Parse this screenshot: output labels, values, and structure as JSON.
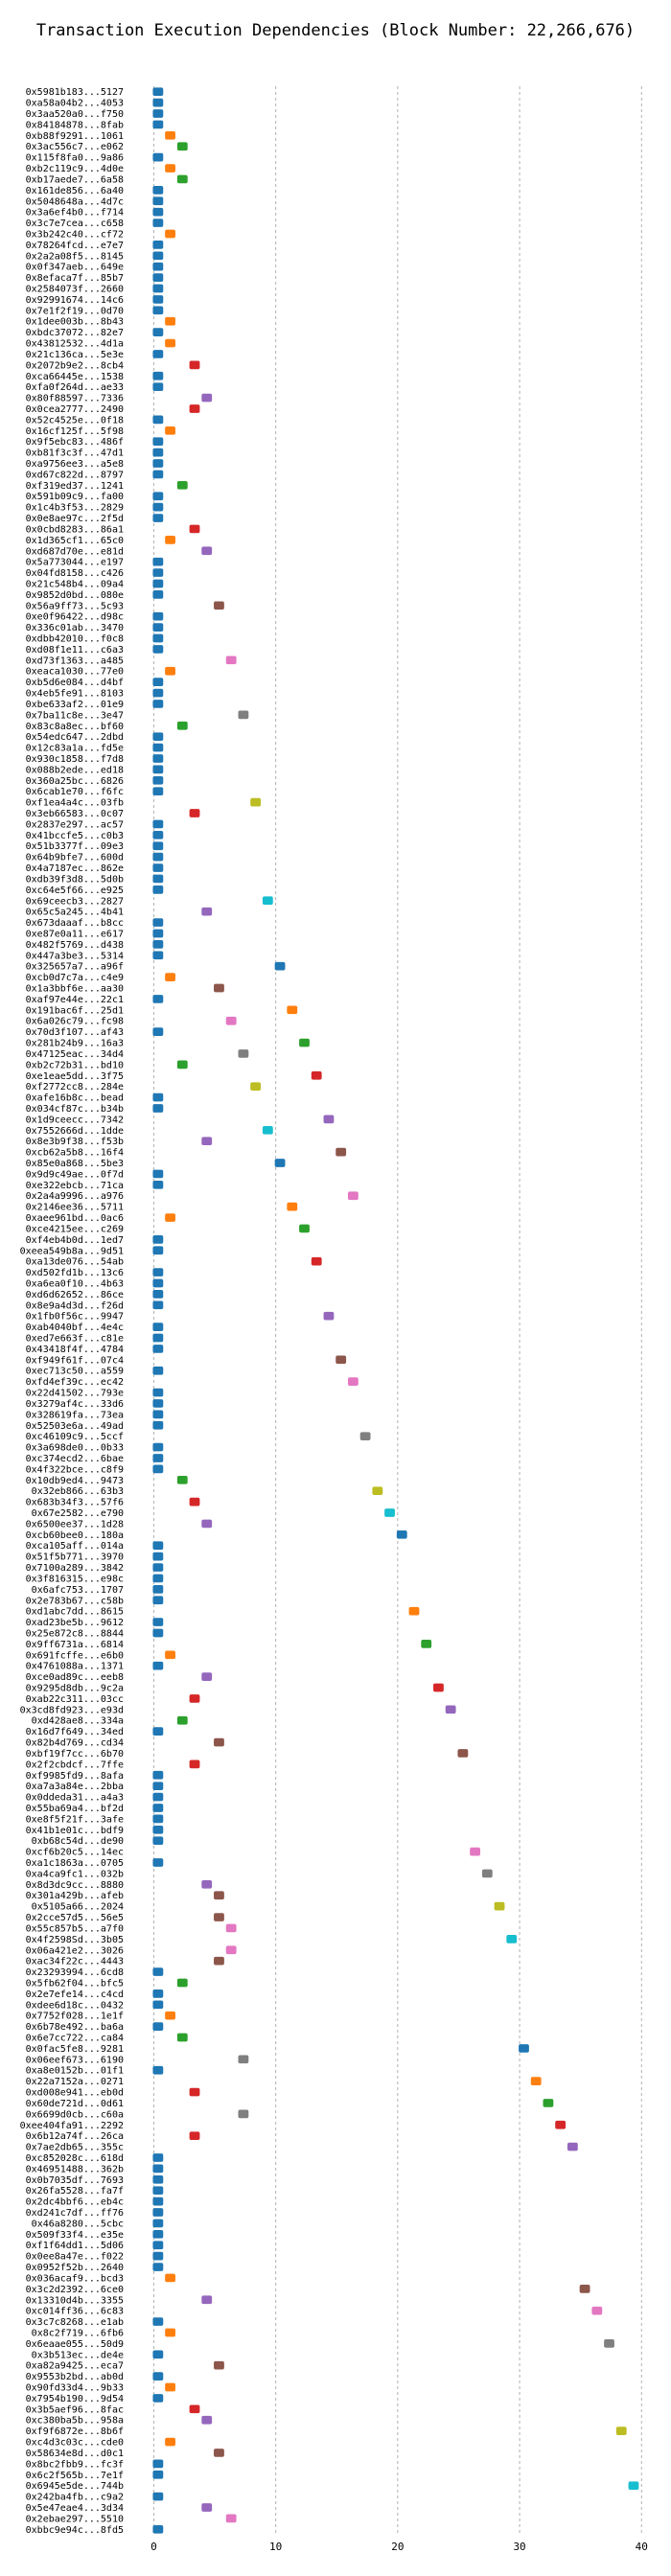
{
  "chart_data": {
    "type": "gantt",
    "title": "Transaction Execution Dependencies (Block Number: 22,266,676)",
    "xlabel": "",
    "ylabel": "",
    "xlim": [
      -2,
      41
    ],
    "xticks": [
      0,
      10,
      20,
      30,
      40
    ],
    "grid": true,
    "bar_duration": 1,
    "tasks": [
      {
        "label": "0x5981b183...5127",
        "start": 0
      },
      {
        "label": "0xa58a04b2...4053",
        "start": 0
      },
      {
        "label": "0x3aa520a0...f750",
        "start": 0
      },
      {
        "label": "0x84184878...8fab",
        "start": 0
      },
      {
        "label": "0xb88f9291...1061",
        "start": 1
      },
      {
        "label": "0x3ac556c7...e062",
        "start": 2
      },
      {
        "label": "0x115f8fa0...9a86",
        "start": 0
      },
      {
        "label": "0xb2c119c9...4d0e",
        "start": 1
      },
      {
        "label": "0xb17aede7...6a58",
        "start": 2
      },
      {
        "label": "0x161de856...6a40",
        "start": 0
      },
      {
        "label": "0x5048648a...4d7c",
        "start": 0
      },
      {
        "label": "0x3a6ef4b0...f714",
        "start": 0
      },
      {
        "label": "0x3c7e7cea...c658",
        "start": 0
      },
      {
        "label": "0x3b242c40...cf72",
        "start": 1
      },
      {
        "label": "0x78264fcd...e7e7",
        "start": 0
      },
      {
        "label": "0x2a2a08f5...8145",
        "start": 0
      },
      {
        "label": "0x0f347aeb...649e",
        "start": 0
      },
      {
        "label": "0x8efaca7f...85b7",
        "start": 0
      },
      {
        "label": "0x2584073f...2660",
        "start": 0
      },
      {
        "label": "0x92991674...14c6",
        "start": 0
      },
      {
        "label": "0x7e1f2f19...0d70",
        "start": 0
      },
      {
        "label": "0x1dee003b...8b43",
        "start": 1
      },
      {
        "label": "0xbdc37072...82e7",
        "start": 0
      },
      {
        "label": "0x43812532...4d1a",
        "start": 1
      },
      {
        "label": "0x21c136ca...5e3e",
        "start": 0
      },
      {
        "label": "0x2072b9e2...8cb4",
        "start": 3
      },
      {
        "label": "0xca66445e...1538",
        "start": 0
      },
      {
        "label": "0xfa0f264d...ae33",
        "start": 0
      },
      {
        "label": "0x80f88597...7336",
        "start": 4
      },
      {
        "label": "0x0cea2777...2490",
        "start": 3
      },
      {
        "label": "0x52c4525e...0f18",
        "start": 0
      },
      {
        "label": "0x16cf125f...5f98",
        "start": 1
      },
      {
        "label": "0x9f5ebc83...486f",
        "start": 0
      },
      {
        "label": "0xb81f3c3f...47d1",
        "start": 0
      },
      {
        "label": "0xa9756ee3...a5e8",
        "start": 0
      },
      {
        "label": "0xd67c822d...8797",
        "start": 0
      },
      {
        "label": "0xf319ed37...1241",
        "start": 2
      },
      {
        "label": "0x591b09c9...fa00",
        "start": 0
      },
      {
        "label": "0x1c4b3f53...2829",
        "start": 0
      },
      {
        "label": "0x0e8ae97c...2f5d",
        "start": 0
      },
      {
        "label": "0x0cbd8283...86a1",
        "start": 3
      },
      {
        "label": "0x1d365cf1...65c0",
        "start": 1
      },
      {
        "label": "0xd687d70e...e81d",
        "start": 4
      },
      {
        "label": "0x5a773044...e197",
        "start": 0
      },
      {
        "label": "0x04fd8158...c426",
        "start": 0
      },
      {
        "label": "0x21c548b4...09a4",
        "start": 0
      },
      {
        "label": "0x9852d0bd...080e",
        "start": 0
      },
      {
        "label": "0x56a9ff73...5c93",
        "start": 5
      },
      {
        "label": "0xe0f96422...d98c",
        "start": 0
      },
      {
        "label": "0x336c01ab...3470",
        "start": 0
      },
      {
        "label": "0xdbb42010...f0c8",
        "start": 0
      },
      {
        "label": "0xd08f1e11...c6a3",
        "start": 0
      },
      {
        "label": "0xd73f1363...a485",
        "start": 6
      },
      {
        "label": "0xeaca1030...77e0",
        "start": 1
      },
      {
        "label": "0xb5d6e084...d4bf",
        "start": 0
      },
      {
        "label": "0x4eb5fe91...8103",
        "start": 0
      },
      {
        "label": "0xbe633af2...01e9",
        "start": 0
      },
      {
        "label": "0x7ba11c8e...3e47",
        "start": 7
      },
      {
        "label": "0x83c8a8ec...bf60",
        "start": 2
      },
      {
        "label": "0x54edc647...2dbd",
        "start": 0
      },
      {
        "label": "0x12c83a1a...fd5e",
        "start": 0
      },
      {
        "label": "0x930c1858...f7d8",
        "start": 0
      },
      {
        "label": "0x088b2ede...ed18",
        "start": 0
      },
      {
        "label": "0x360a25bc...6826",
        "start": 0
      },
      {
        "label": "0x6cab1e70...f6fc",
        "start": 0
      },
      {
        "label": "0xf1ea4a4c...03fb",
        "start": 8
      },
      {
        "label": "0x3eb66583...0c07",
        "start": 3
      },
      {
        "label": "0x2837e297...ac57",
        "start": 0
      },
      {
        "label": "0x41bccfe5...c0b3",
        "start": 0
      },
      {
        "label": "0x51b3377f...09e3",
        "start": 0
      },
      {
        "label": "0x64b9bfe7...600d",
        "start": 0
      },
      {
        "label": "0x4a7187ec...862e",
        "start": 0
      },
      {
        "label": "0xdb39f3d8...5d0b",
        "start": 0
      },
      {
        "label": "0xc64e5f66...e925",
        "start": 0
      },
      {
        "label": "0x69ceecb3...2827",
        "start": 9
      },
      {
        "label": "0x65c5a245...4b41",
        "start": 4
      },
      {
        "label": "0x673daaaf...b8cc",
        "start": 0
      },
      {
        "label": "0xe87e0a11...e617",
        "start": 0
      },
      {
        "label": "0x482f5769...d438",
        "start": 0
      },
      {
        "label": "0x447a3be3...5314",
        "start": 0
      },
      {
        "label": "0x325657a7...a96f",
        "start": 10
      },
      {
        "label": "0xcb0d7c7a...c4e9",
        "start": 1
      },
      {
        "label": "0x1a3bbf6e...aa30",
        "start": 5
      },
      {
        "label": "0xaf97e44e...22c1",
        "start": 0
      },
      {
        "label": "0x191bac6f...25d1",
        "start": 11
      },
      {
        "label": "0x6a026c79...fc98",
        "start": 6
      },
      {
        "label": "0x70d3f107...af43",
        "start": 0
      },
      {
        "label": "0x281b24b9...16a3",
        "start": 12
      },
      {
        "label": "0x47125eac...34d4",
        "start": 7
      },
      {
        "label": "0xb2c72b31...bd10",
        "start": 2
      },
      {
        "label": "0xe1eae5dd...3f75",
        "start": 13
      },
      {
        "label": "0xf2772cc8...284e",
        "start": 8
      },
      {
        "label": "0xafe16b8c...bead",
        "start": 0
      },
      {
        "label": "0x034cf87c...b34b",
        "start": 0
      },
      {
        "label": "0x1d9ceecc...7342",
        "start": 14
      },
      {
        "label": "0x7552666d...1dde",
        "start": 9
      },
      {
        "label": "0x8e3b9f38...f53b",
        "start": 4
      },
      {
        "label": "0xcb62a5b8...16f4",
        "start": 15
      },
      {
        "label": "0x85e0a868...5be3",
        "start": 10
      },
      {
        "label": "0x9d9c49ae...0f7d",
        "start": 0
      },
      {
        "label": "0xe322ebcb...71ca",
        "start": 0
      },
      {
        "label": "0x2a4a9996...a976",
        "start": 16
      },
      {
        "label": "0x2146ee36...5711",
        "start": 11
      },
      {
        "label": "0xaee961bd...0ac6",
        "start": 1
      },
      {
        "label": "0xce4215ee...c269",
        "start": 12
      },
      {
        "label": "0xf4eb4b0d...1ed7",
        "start": 0
      },
      {
        "label": "0xeea549b8a...9d51",
        "start": 0
      },
      {
        "label": "0xa13de076...54ab",
        "start": 13
      },
      {
        "label": "0xd502fd1b...13c6",
        "start": 0
      },
      {
        "label": "0xa6ea0f10...4b63",
        "start": 0
      },
      {
        "label": "0xd6d62652...86ce",
        "start": 0
      },
      {
        "label": "0x8e9a4d3d...f26d",
        "start": 0
      },
      {
        "label": "0x1fb0f56c...9947",
        "start": 14
      },
      {
        "label": "0xab4040bf...4e4c",
        "start": 0
      },
      {
        "label": "0xed7e663f...c81e",
        "start": 0
      },
      {
        "label": "0x43418f4f...4784",
        "start": 0
      },
      {
        "label": "0xf949f61f...07c4",
        "start": 15
      },
      {
        "label": "0xec713c50...a559",
        "start": 0
      },
      {
        "label": "0xfd4ef39c...ec42",
        "start": 16
      },
      {
        "label": "0x22d41502...793e",
        "start": 0
      },
      {
        "label": "0x3279af4c...33d6",
        "start": 0
      },
      {
        "label": "0x328619fa...73ea",
        "start": 0
      },
      {
        "label": "0x52503e6a...49ad",
        "start": 0
      },
      {
        "label": "0xc46109c9...5ccf",
        "start": 17
      },
      {
        "label": "0x3a698de0...0b33",
        "start": 0
      },
      {
        "label": "0xc374ecd2...6bae",
        "start": 0
      },
      {
        "label": "0x4f322bce...c8f9",
        "start": 0
      },
      {
        "label": "0x10db9ed4...9473",
        "start": 2
      },
      {
        "label": "0x32eb866...63b3",
        "start": 18
      },
      {
        "label": "0x683b34f3...57f6",
        "start": 3
      },
      {
        "label": "0x67e2582...e790",
        "start": 19
      },
      {
        "label": "0x6500ee37...1d28",
        "start": 4
      },
      {
        "label": "0xcb60bee0...180a",
        "start": 20
      },
      {
        "label": "0xca105aff...014a",
        "start": 0
      },
      {
        "label": "0x51f5b771...3970",
        "start": 0
      },
      {
        "label": "0x7100a289...3842",
        "start": 0
      },
      {
        "label": "0x3f816315...e98c",
        "start": 0
      },
      {
        "label": "0x6afc753...1707",
        "start": 0
      },
      {
        "label": "0x2e783b67...c58b",
        "start": 0
      },
      {
        "label": "0xd1abc7dd...8615",
        "start": 21
      },
      {
        "label": "0xad23be5b...9612",
        "start": 0
      },
      {
        "label": "0x25e872c8...8844",
        "start": 0
      },
      {
        "label": "0x9ff6731a...6814",
        "start": 22
      },
      {
        "label": "0x691fcffe...e6b0",
        "start": 1
      },
      {
        "label": "0x4761088a...1371",
        "start": 0
      },
      {
        "label": "0xce0ad89c...eeb8",
        "start": 4
      },
      {
        "label": "0x9295d8db...9c2a",
        "start": 23
      },
      {
        "label": "0xab22c311...03cc",
        "start": 3
      },
      {
        "label": "0x3cd8fd923...e93d",
        "start": 24
      },
      {
        "label": "0xd428ae8...334a",
        "start": 2
      },
      {
        "label": "0x16d7f649...34ed",
        "start": 0
      },
      {
        "label": "0x82b4d769...cd34",
        "start": 5
      },
      {
        "label": "0xbf19f7cc...6b70",
        "start": 25
      },
      {
        "label": "0x2f2cbdcf...7ffe",
        "start": 3
      },
      {
        "label": "0xf9985fd9...8afa",
        "start": 0
      },
      {
        "label": "0xa7a3a84e...2bba",
        "start": 0
      },
      {
        "label": "0x0ddeda31...a4a3",
        "start": 0
      },
      {
        "label": "0x55ba69a4...bf2d",
        "start": 0
      },
      {
        "label": "0xe8f5f21f...3afe",
        "start": 0
      },
      {
        "label": "0x41b1e01c...bdf9",
        "start": 0
      },
      {
        "label": "0xb68c54d...de90",
        "start": 0
      },
      {
        "label": "0xcf6b20c5...14ec",
        "start": 26
      },
      {
        "label": "0xa1c1863a...0705",
        "start": 0
      },
      {
        "label": "0xa4ca9fc1...032b",
        "start": 27
      },
      {
        "label": "0x8d3dc9cc...8880",
        "start": 4
      },
      {
        "label": "0x301a429b...afeb",
        "start": 5
      },
      {
        "label": "0x5105a66...2024",
        "start": 28
      },
      {
        "label": "0x2cce57d5...56e5",
        "start": 5
      },
      {
        "label": "0x55c857b5...a7f0",
        "start": 6
      },
      {
        "label": "0x4f2598Sd...3b05",
        "start": 29
      },
      {
        "label": "0x06a421e2...3026",
        "start": 6
      },
      {
        "label": "0xac34f22c...4443",
        "start": 5
      },
      {
        "label": "0x23293994...6cd8",
        "start": 0
      },
      {
        "label": "0x5fb62f04...bfc5",
        "start": 2
      },
      {
        "label": "0x2e7efe14...c4cd",
        "start": 0
      },
      {
        "label": "0xdee6d18c...0432",
        "start": 0
      },
      {
        "label": "0x7752f028...1e1f",
        "start": 1
      },
      {
        "label": "0x6b78e492...ba6a",
        "start": 0
      },
      {
        "label": "0x6e7cc722...ca84",
        "start": 2
      },
      {
        "label": "0x0fac5fe8...9281",
        "start": 30
      },
      {
        "label": "0x06eef673...6190",
        "start": 7
      },
      {
        "label": "0xa8e0152b...01f1",
        "start": 0
      },
      {
        "label": "0x22a7152a...0271",
        "start": 31
      },
      {
        "label": "0xd008e941...eb0d",
        "start": 3
      },
      {
        "label": "0x60de721d...0d61",
        "start": 32
      },
      {
        "label": "0x6699d0cb...c60a",
        "start": 7
      },
      {
        "label": "0xee404fa91...2292",
        "start": 33
      },
      {
        "label": "0x6b12a74f...26ca",
        "start": 3
      },
      {
        "label": "0x7ae2db65...355c",
        "start": 34
      },
      {
        "label": "0xc852028c...618d",
        "start": 0
      },
      {
        "label": "0x46951488...362b",
        "start": 0
      },
      {
        "label": "0x0b7035df...7693",
        "start": 0
      },
      {
        "label": "0x26fa5528...fa7f",
        "start": 0
      },
      {
        "label": "0x2dc4bbf6...eb4c",
        "start": 0
      },
      {
        "label": "0xd241c7df...ff76",
        "start": 0
      },
      {
        "label": "0x46a8280...5cbc",
        "start": 0
      },
      {
        "label": "0x509f33f4...e35e",
        "start": 0
      },
      {
        "label": "0xf1f64dd1...5d06",
        "start": 0
      },
      {
        "label": "0x0ee8a47e...f022",
        "start": 0
      },
      {
        "label": "0x0952f52b...2640",
        "start": 0
      },
      {
        "label": "0x036acaf9...bcd3",
        "start": 1
      },
      {
        "label": "0x3c2d2392...6ce0",
        "start": 35
      },
      {
        "label": "0x13310d4b...3355",
        "start": 4
      },
      {
        "label": "0xc014ff36...6c83",
        "start": 36
      },
      {
        "label": "0x3c7c8268...e1ab",
        "start": 0
      },
      {
        "label": "0x8c2f719...6fb6",
        "start": 1
      },
      {
        "label": "0x6eaae055...50d9",
        "start": 37
      },
      {
        "label": "0x3b513ec...de4e",
        "start": 0
      },
      {
        "label": "0xa82a9425...eca7",
        "start": 5
      },
      {
        "label": "0x9553b2bd...ab0d",
        "start": 0
      },
      {
        "label": "0x90fd33d4...9b33",
        "start": 1
      },
      {
        "label": "0x7954b190...9d54",
        "start": 0
      },
      {
        "label": "0x3b5aef96...8fac",
        "start": 3
      },
      {
        "label": "0xc380ba5b...958a",
        "start": 4
      },
      {
        "label": "0xf9f6872e...8b6f",
        "start": 38
      },
      {
        "label": "0xc4d3c03c...cde0",
        "start": 1
      },
      {
        "label": "0x58634e8d...d0c1",
        "start": 5
      },
      {
        "label": "0x8bc2fbb9...fc3f",
        "start": 0
      },
      {
        "label": "0x6c2f565b...7e1f",
        "start": 0
      },
      {
        "label": "0x6945e5de...744b",
        "start": 39
      },
      {
        "label": "0x242ba4fb...c9a2",
        "start": 0
      },
      {
        "label": "0x5e47eae4...3d34",
        "start": 4
      },
      {
        "label": "0x2ebae297...5510",
        "start": 6
      },
      {
        "label": "0xbbc9e94c...8fd5",
        "start": 0
      }
    ],
    "colors": [
      "#1f77b4",
      "#ff7f0e",
      "#2ca02c",
      "#d62728",
      "#9467bd",
      "#8c564b",
      "#e377c2",
      "#7f7f7f",
      "#bcbd22",
      "#17becf"
    ]
  }
}
